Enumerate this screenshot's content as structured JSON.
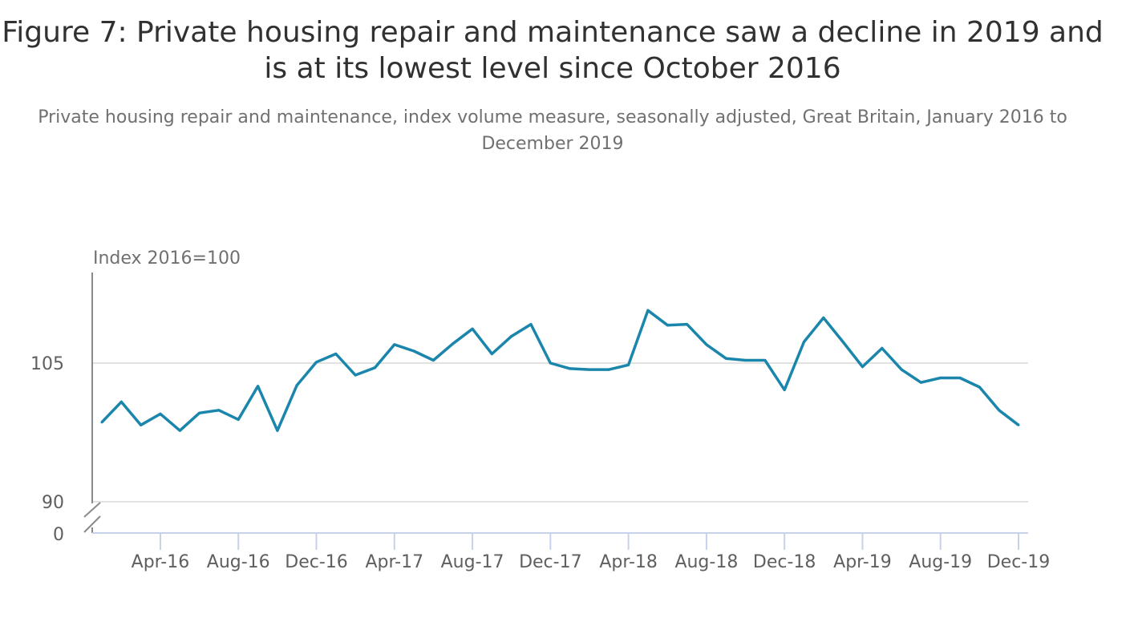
{
  "chart_data": {
    "type": "line",
    "title": "Figure 7: Private housing repair and maintenance saw a decline in 2019 and is at its lowest level since October 2016",
    "subtitle": "Private housing repair and maintenance, index volume measure, seasonally adjusted, Great Britain, January 2016 to December 2019",
    "ylabel": "Index 2016=100",
    "xlabel": "",
    "y_ticks": [
      "105",
      "90",
      "0"
    ],
    "y_tick_values": [
      105,
      90
    ],
    "ylim": [
      90,
      115
    ],
    "axis_break": true,
    "x_tick_labels": [
      "Apr-16",
      "Aug-16",
      "Dec-16",
      "Apr-17",
      "Aug-17",
      "Dec-17",
      "Apr-18",
      "Aug-18",
      "Dec-18",
      "Apr-19",
      "Aug-19",
      "Dec-19"
    ],
    "x_tick_indices": [
      3,
      7,
      11,
      15,
      19,
      23,
      27,
      31,
      35,
      39,
      43,
      47
    ],
    "color": "#206095",
    "series": [
      {
        "name": "Private housing repair and maintenance",
        "color": "#1a86ab",
        "values": [
          98.6,
          100.8,
          98.3,
          99.5,
          97.7,
          99.6,
          99.9,
          98.9,
          102.5,
          97.7,
          102.6,
          105.1,
          106.0,
          103.7,
          104.5,
          107.0,
          106.3,
          105.3,
          107.1,
          108.7,
          106.0,
          107.9,
          109.2,
          105.0,
          104.4,
          104.3,
          104.3,
          104.8,
          110.7,
          109.1,
          109.2,
          107.0,
          105.5,
          105.3,
          105.3,
          102.1,
          107.3,
          109.9,
          107.3,
          104.6,
          106.6,
          104.3,
          102.9,
          103.4,
          103.4,
          102.4,
          99.9,
          98.3
        ]
      }
    ],
    "grid": true
  }
}
